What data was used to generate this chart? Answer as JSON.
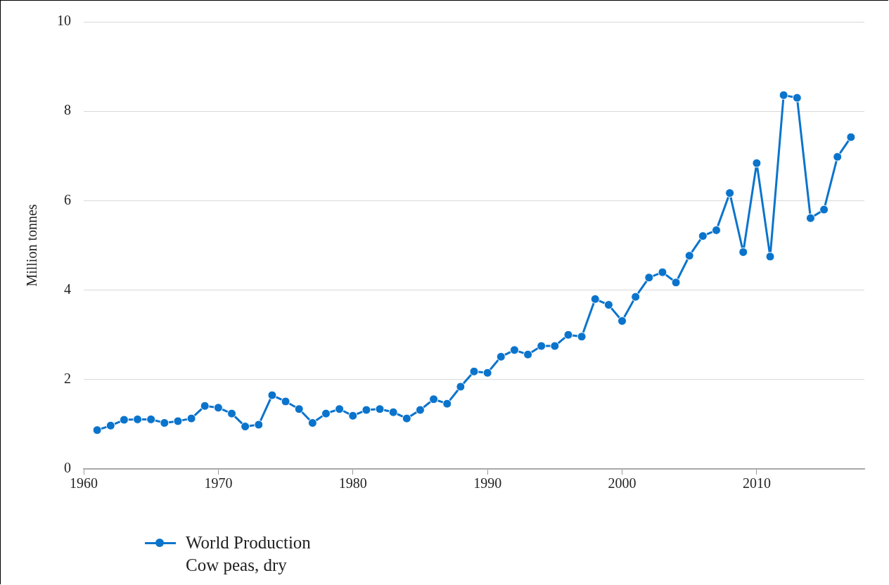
{
  "chart_data": {
    "type": "line",
    "ylabel": "Million tonnes",
    "x": [
      1961,
      1962,
      1963,
      1964,
      1965,
      1966,
      1967,
      1968,
      1969,
      1970,
      1971,
      1972,
      1973,
      1974,
      1975,
      1976,
      1977,
      1978,
      1979,
      1980,
      1981,
      1982,
      1983,
      1984,
      1985,
      1986,
      1987,
      1988,
      1989,
      1990,
      1991,
      1992,
      1993,
      1994,
      1995,
      1996,
      1997,
      1998,
      1999,
      2000,
      2001,
      2002,
      2003,
      2004,
      2005,
      2006,
      2007,
      2008,
      2009,
      2010,
      2011,
      2012,
      2013,
      2014,
      2015,
      2016,
      2017
    ],
    "series": [
      {
        "name": "World Production\nCow peas, dry",
        "color": "#0a74cc",
        "values": [
          0.87,
          0.97,
          1.1,
          1.11,
          1.11,
          1.03,
          1.07,
          1.13,
          1.41,
          1.37,
          1.24,
          0.95,
          0.99,
          1.65,
          1.51,
          1.34,
          1.03,
          1.24,
          1.34,
          1.19,
          1.32,
          1.34,
          1.27,
          1.13,
          1.32,
          1.56,
          1.46,
          1.84,
          2.18,
          2.15,
          2.51,
          2.66,
          2.56,
          2.75,
          2.75,
          3.0,
          2.96,
          3.8,
          3.67,
          3.31,
          3.85,
          4.28,
          4.4,
          4.17,
          4.77,
          5.21,
          5.34,
          6.17,
          4.85,
          6.84,
          4.75,
          8.36,
          8.3,
          5.61,
          5.8,
          6.98,
          7.42
        ]
      }
    ],
    "xlim": [
      1960,
      2018
    ],
    "xticks": [
      1960,
      1970,
      1980,
      1990,
      2000,
      2010
    ],
    "ylim": [
      0,
      10
    ],
    "yticks": [
      0,
      2,
      4,
      6,
      8,
      10
    ],
    "grid": "y",
    "legend": "bottom left",
    "marker": "circle",
    "line_style": "solid"
  }
}
